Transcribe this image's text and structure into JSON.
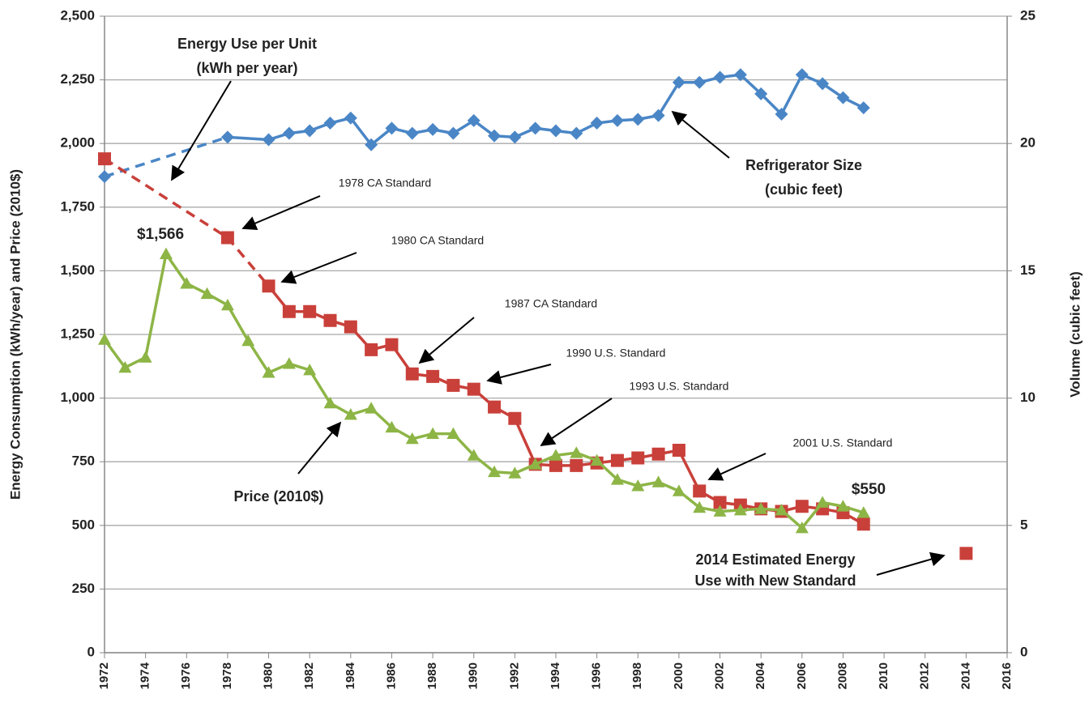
{
  "chart_data": {
    "type": "line",
    "y_label": "Energy Consumption (kWh/year) and Price (2010$)",
    "y2_label": "Volume (cubic feet)",
    "xlim": [
      1972,
      2016
    ],
    "xticks": [
      1972,
      1974,
      1976,
      1978,
      1980,
      1982,
      1984,
      1986,
      1988,
      1990,
      1992,
      1994,
      1996,
      1998,
      2000,
      2002,
      2004,
      2006,
      2008,
      2010,
      2012,
      2014,
      2016
    ],
    "ylim": [
      0,
      2500
    ],
    "yticks": [
      0,
      250,
      500,
      750,
      {
        "value": 1000,
        "label": "1,000"
      },
      {
        "value": 1250,
        "label": "1,250"
      },
      {
        "value": 1500,
        "label": "1,500"
      },
      {
        "value": 1750,
        "label": "1,750"
      },
      {
        "value": 2000,
        "label": "2,000"
      },
      {
        "value": 2250,
        "label": "2,250"
      },
      {
        "value": 2500,
        "label": "2,500"
      }
    ],
    "y2lim": [
      0,
      25
    ],
    "y2ticks": [
      0,
      5,
      10,
      15,
      20,
      25
    ],
    "grid": true,
    "series": [
      {
        "color": "#4a86c6",
        "marker": "diamond",
        "axis": "y2",
        "dash_until": 1978,
        "x": [
          1972,
          1978,
          1980,
          1981,
          1982,
          1983,
          1984,
          1985,
          1986,
          1987,
          1988,
          1989,
          1990,
          1991,
          1992,
          1993,
          1994,
          1995,
          1996,
          1997,
          1998,
          1999,
          2000,
          2001,
          2002,
          2003,
          2004,
          2005,
          2006,
          2007,
          2008,
          2009
        ],
        "values": [
          18.7,
          20.25,
          20.15,
          20.4,
          20.5,
          20.8,
          21.0,
          19.95,
          20.6,
          20.4,
          20.55,
          20.4,
          20.9,
          20.3,
          20.25,
          20.6,
          20.5,
          20.4,
          20.8,
          20.9,
          20.95,
          21.1,
          22.4,
          22.4,
          22.6,
          22.7,
          21.95,
          21.15,
          22.7,
          22.35,
          21.8,
          21.4
        ]
      },
      {
        "color": "#c9403a",
        "marker": "square",
        "dash_until": 1980,
        "x": [
          1972,
          1978,
          1980,
          1981,
          1982,
          1983,
          1984,
          1985,
          1986,
          1987,
          1988,
          1989,
          1990,
          1991,
          1992,
          1993,
          1994,
          1995,
          1996,
          1997,
          1998,
          1999,
          2000,
          2001,
          2002,
          2003,
          2004,
          2005,
          2006,
          2007,
          2008,
          2009
        ],
        "values": [
          1940,
          1630,
          1440,
          1340,
          1340,
          1305,
          1280,
          1190,
          1210,
          1095,
          1085,
          1050,
          1035,
          965,
          920,
          740,
          735,
          735,
          745,
          755,
          765,
          780,
          795,
          635,
          590,
          580,
          565,
          555,
          575,
          565,
          550,
          505
        ]
      },
      {
        "color": "#8db546",
        "marker": "triangle",
        "x": [
          1972,
          1973,
          1974,
          1975,
          1976,
          1977,
          1978,
          1979,
          1980,
          1981,
          1982,
          1983,
          1984,
          1985,
          1986,
          1987,
          1988,
          1989,
          1990,
          1991,
          1992,
          1993,
          1994,
          1995,
          1996,
          1997,
          1998,
          1999,
          2000,
          2001,
          2002,
          2003,
          2004,
          2005,
          2006,
          2007,
          2008,
          2009
        ],
        "values": [
          1230,
          1120,
          1160,
          1566,
          1450,
          1410,
          1365,
          1225,
          1100,
          1135,
          1110,
          980,
          935,
          960,
          885,
          840,
          860,
          860,
          775,
          710,
          705,
          740,
          775,
          785,
          755,
          680,
          655,
          670,
          635,
          570,
          555,
          560,
          565,
          560,
          490,
          590,
          575,
          550
        ]
      },
      {
        "color": "#c9403a",
        "marker": "square",
        "line": false,
        "x": [
          2014
        ],
        "values": [
          390
        ]
      }
    ],
    "annotations": [
      {
        "lines": [
          "Energy Use per Unit",
          "(kWh per year)"
        ],
        "bold": true
      },
      {
        "lines": [
          "1978 CA Standard"
        ]
      },
      {
        "lines": [
          "1980 CA Standard"
        ]
      },
      {
        "lines": [
          "1987 CA Standard"
        ]
      },
      {
        "lines": [
          "1990 U.S. Standard"
        ]
      },
      {
        "lines": [
          "1993 U.S. Standard"
        ]
      },
      {
        "lines": [
          "2001 U.S. Standard"
        ]
      },
      {
        "lines": [
          "$1,566"
        ],
        "bold": true
      },
      {
        "lines": [
          "$550"
        ],
        "bold": true
      },
      {
        "lines": [
          "Price (2010$)"
        ],
        "bold": true
      },
      {
        "lines": [
          "Refrigerator Size",
          "(cubic feet)"
        ],
        "bold": true
      },
      {
        "lines": [
          "2014 Estimated Energy",
          "Use with New Standard"
        ],
        "bold": true
      }
    ]
  }
}
